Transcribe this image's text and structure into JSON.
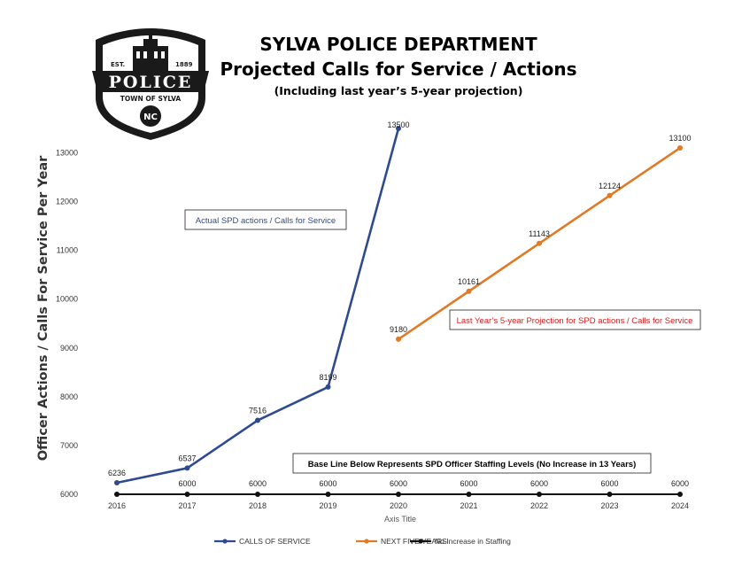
{
  "badge": {
    "top": "EST.",
    "year": "1889",
    "word": "POLICE",
    "town": "TOWN OF SYLVA",
    "state": "NC"
  },
  "colors": {
    "calls": "#2f4b8f",
    "projection": "#e07a26",
    "staffing": "#111111",
    "projection_text": "#d01f1f",
    "calls_text": "#2f4b8f"
  },
  "chart_data": {
    "type": "line",
    "title": "SYLVA POLICE DEPARTMENT",
    "subtitle": "Projected Calls for Service / Actions",
    "subtitle2": "(Including last year’s 5-year projection)",
    "xlabel": "Axis Title",
    "ylabel": "Officer Actions / Calls For Service Per Year",
    "ylim": [
      6000,
      13500
    ],
    "yticks": [
      6000,
      7000,
      8000,
      9000,
      10000,
      11000,
      12000,
      13000
    ],
    "x": [
      2016,
      2017,
      2018,
      2019,
      2020,
      2021,
      2022,
      2023,
      2024
    ],
    "series": [
      {
        "name": "CALLS OF SERVICE",
        "key": "calls",
        "x": [
          2016,
          2017,
          2018,
          2019,
          2020
        ],
        "values": [
          6236,
          6537,
          7516,
          8199,
          13500
        ],
        "labels": [
          "6236",
          "6537",
          "7516",
          "8199",
          "13500"
        ]
      },
      {
        "name": "NEXT FIVE YEARS",
        "key": "projection",
        "x": [
          2020,
          2021,
          2022,
          2023,
          2024
        ],
        "values": [
          9180,
          10161,
          11143,
          12124,
          13100
        ],
        "labels": [
          "9180",
          "10161",
          "11143",
          "12124",
          "13100"
        ]
      },
      {
        "name": "No Increase in Staffing",
        "key": "staffing",
        "x": [
          2016,
          2017,
          2018,
          2019,
          2020,
          2021,
          2022,
          2023,
          2024
        ],
        "values": [
          6000,
          6000,
          6000,
          6000,
          6000,
          6000,
          6000,
          6000,
          6000
        ],
        "labels": [
          "",
          "6000",
          "6000",
          "6000",
          "6000",
          "6000",
          "6000",
          "6000",
          "6000"
        ]
      }
    ],
    "annotations": {
      "calls": "Actual SPD actions / Calls for Service",
      "projection": "Last Year’s 5-year Projection for SPD actions / Calls for Service",
      "baseline": "Base Line Below Represents SPD Officer Staffing Levels (No Increase in 13 Years)"
    },
    "legend_position": "bottom",
    "grid": false
  }
}
